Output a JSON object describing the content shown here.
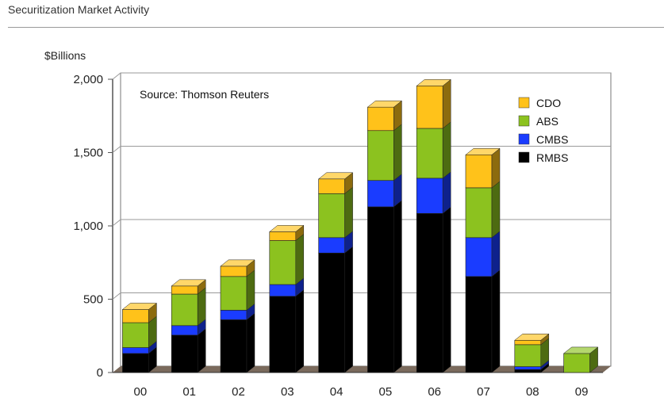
{
  "header": {
    "title": "Securitization Market Activity"
  },
  "chart_data": {
    "type": "bar",
    "stacked": true,
    "categories": [
      "00",
      "01",
      "02",
      "03",
      "04",
      "05",
      "06",
      "07",
      "08",
      "09"
    ],
    "series": [
      {
        "name": "RMBS",
        "color": "#000000",
        "values": [
          130,
          255,
          360,
          520,
          815,
          1130,
          1085,
          655,
          20,
          0
        ]
      },
      {
        "name": "CMBS",
        "color": "#1a3cff",
        "values": [
          40,
          65,
          65,
          80,
          105,
          180,
          240,
          265,
          20,
          0
        ]
      },
      {
        "name": "ABS",
        "color": "#8cc21f",
        "values": [
          170,
          215,
          230,
          300,
          300,
          340,
          340,
          340,
          150,
          130
        ]
      },
      {
        "name": "CDO",
        "color": "#ffc21a",
        "values": [
          90,
          55,
          70,
          60,
          100,
          160,
          290,
          225,
          30,
          0
        ]
      }
    ],
    "legend_order": [
      "CDO",
      "ABS",
      "CMBS",
      "RMBS"
    ],
    "legend_position": "top-right",
    "ylabel": "$Billions",
    "ylim": [
      0,
      2000
    ],
    "yticks": [
      0,
      500,
      1000,
      1500,
      2000
    ],
    "ytick_labels": [
      "0",
      "500",
      "1,000",
      "1,500",
      "2,000"
    ],
    "grid": true,
    "annotation": "Source: Thomson Reuters"
  }
}
